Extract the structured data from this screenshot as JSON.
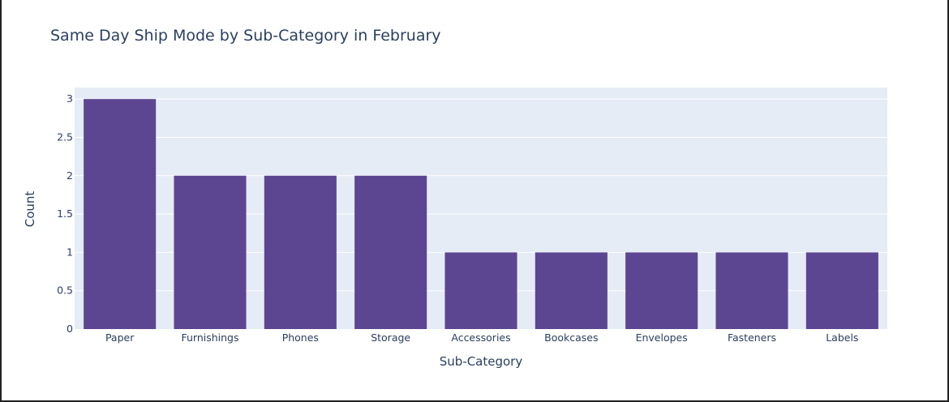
{
  "chart_data": {
    "type": "bar",
    "title": "Same Day Ship Mode by Sub-Category in February",
    "xlabel": "Sub-Category",
    "ylabel": "Count",
    "categories": [
      "Paper",
      "Furnishings",
      "Phones",
      "Storage",
      "Accessories",
      "Bookcases",
      "Envelopes",
      "Fasteners",
      "Labels"
    ],
    "values": [
      3,
      2,
      2,
      2,
      1,
      1,
      1,
      1,
      1
    ],
    "ylim": [
      0,
      3.15
    ],
    "yticks": [
      0,
      0.5,
      1,
      1.5,
      2,
      2.5,
      3
    ],
    "ytick_labels": [
      "0",
      "0.5",
      "1",
      "1.5",
      "2",
      "2.5",
      "3"
    ],
    "grid": true,
    "bar_color": "#5d4691",
    "plot_background": "#e5ecf6",
    "gridline_color": "#ffffff",
    "text_color": "#2a3f5f"
  }
}
